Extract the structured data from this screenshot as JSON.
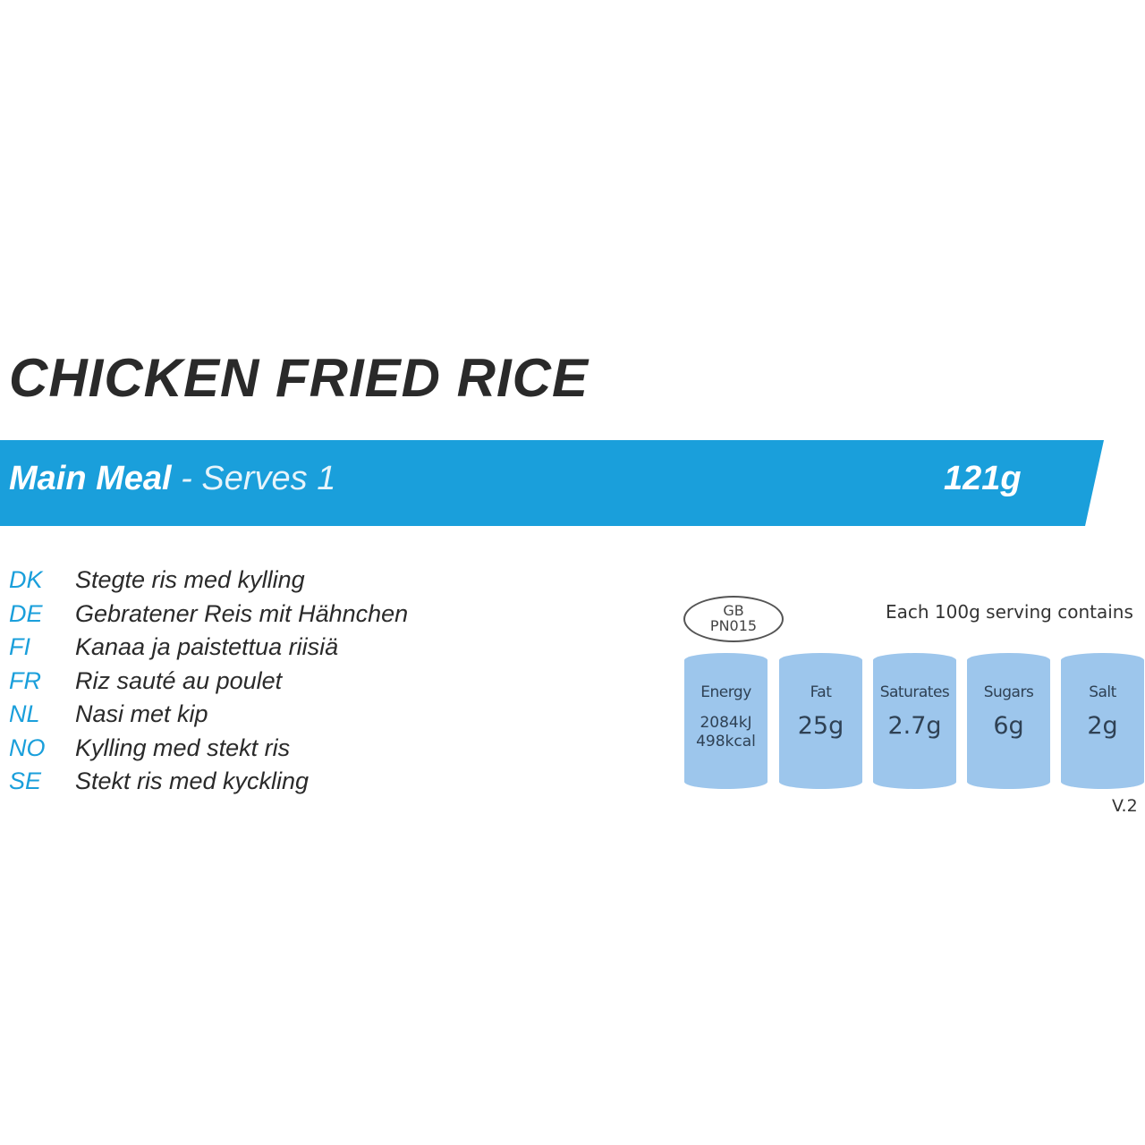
{
  "title": "CHICKEN FRIED RICE",
  "banner": {
    "meal_type": "Main Meal",
    "serves": "- Serves 1",
    "weight": "121g",
    "color": "#1a9fdb"
  },
  "translations": [
    {
      "code": "DK",
      "name": "Stegte ris med kylling"
    },
    {
      "code": "DE",
      "name": "Gebratener Reis mit Hähnchen"
    },
    {
      "code": "FI",
      "name": "Kanaa ja paistettua riisiä"
    },
    {
      "code": "FR",
      "name": "Riz sauté au poulet"
    },
    {
      "code": "NL",
      "name": "Nasi met kip"
    },
    {
      "code": "NO",
      "name": "Kylling med stekt ris"
    },
    {
      "code": "SE",
      "name": "Stekt ris med kyckling"
    }
  ],
  "nutrition": {
    "pn_line1": "GB",
    "pn_line2": "PN015",
    "heading": "Each 100g serving contains",
    "items": [
      {
        "label": "Energy",
        "value": "2084kJ",
        "value2": "498kcal"
      },
      {
        "label": "Fat",
        "value": "25g"
      },
      {
        "label": "Saturates",
        "value": "2.7g"
      },
      {
        "label": "Sugars",
        "value": "6g"
      },
      {
        "label": "Salt",
        "value": "2g"
      }
    ],
    "box_color": "#9dc6ec"
  },
  "version": "V.2"
}
